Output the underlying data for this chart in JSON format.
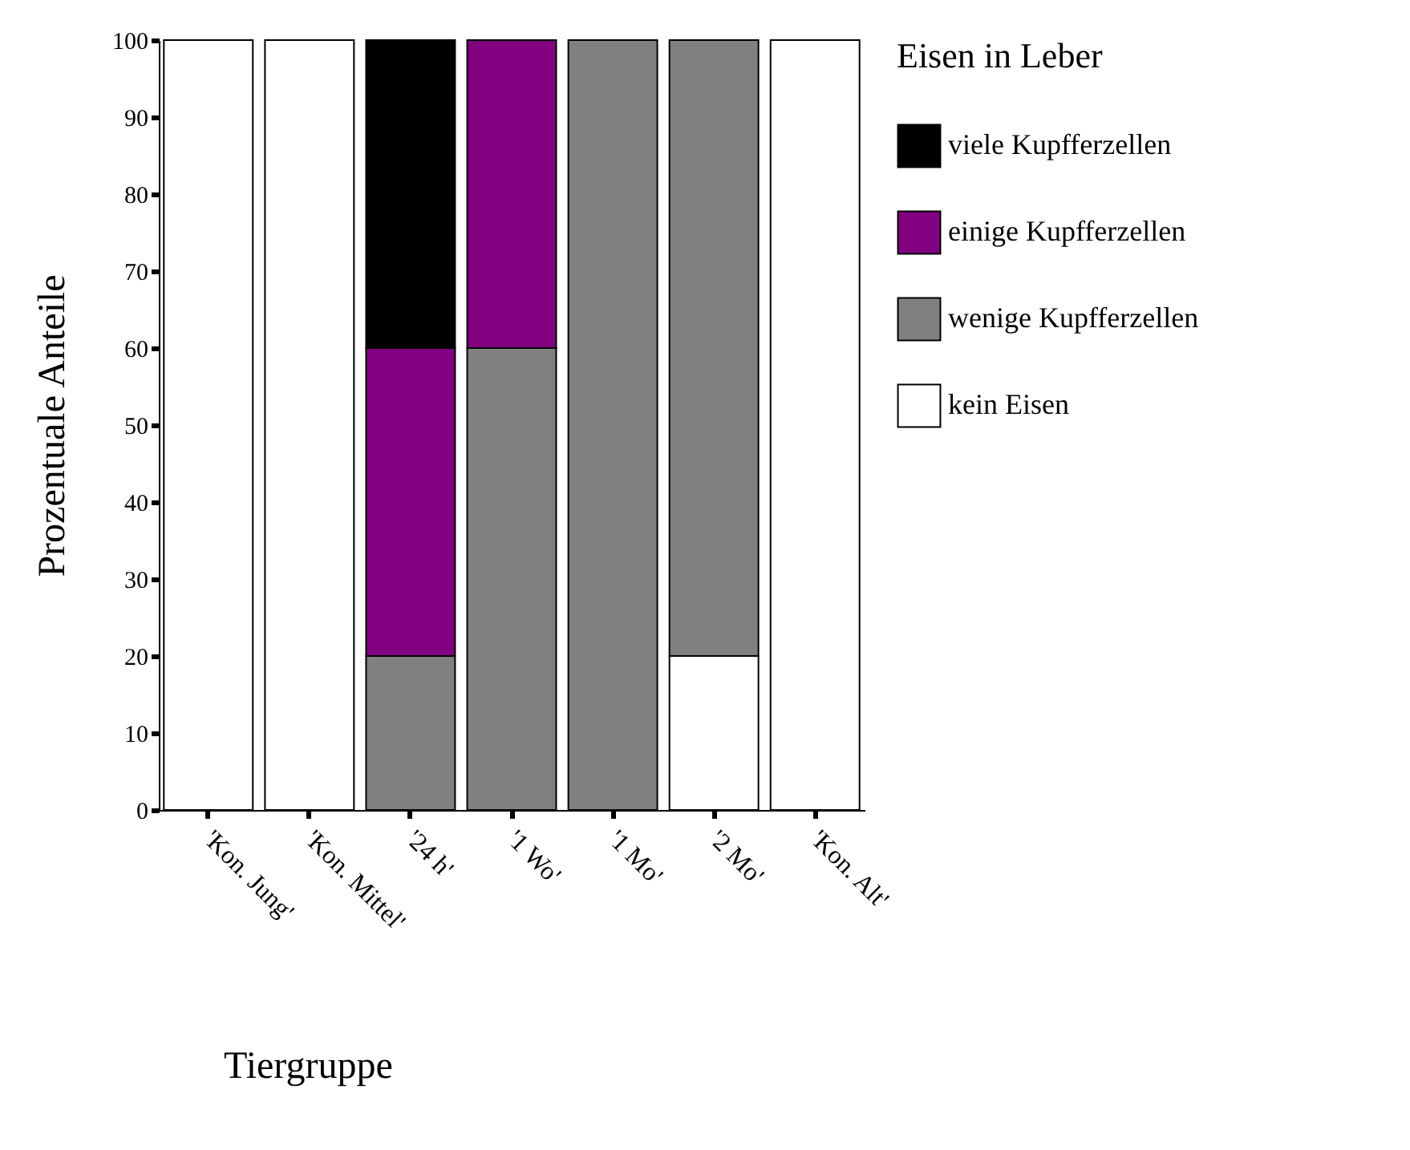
{
  "chart_data": {
    "type": "bar",
    "stacked": true,
    "xlabel": "Tiergruppe",
    "ylabel": "Prozentuale Anteile",
    "legend_title": "Eisen in Leber",
    "legend": "right",
    "categories": [
      "'Kon. Jung'",
      "'Kon. Mittel'",
      "'24 h'",
      "'1 Wo'",
      "'1 Mo'",
      "'2 Mo'",
      "'Kon. Alt'"
    ],
    "ylim": [
      0,
      100
    ],
    "yticks": [
      0,
      10,
      20,
      30,
      40,
      50,
      60,
      70,
      80,
      90,
      100
    ],
    "grid": false,
    "series": [
      {
        "name": "kein Eisen",
        "color": "#ffffff",
        "values": [
          100,
          100,
          0,
          0,
          0,
          20,
          100
        ]
      },
      {
        "name": "wenige Kupfferzellen",
        "color": "#808080",
        "values": [
          0,
          0,
          20,
          60,
          100,
          80,
          0
        ]
      },
      {
        "name": "einige Kupfferzellen",
        "color": "#800080",
        "values": [
          0,
          0,
          40,
          40,
          0,
          0,
          0
        ]
      },
      {
        "name": "viele Kupfferzellen",
        "color": "#000000",
        "values": [
          0,
          0,
          40,
          0,
          0,
          0,
          0
        ]
      }
    ]
  }
}
